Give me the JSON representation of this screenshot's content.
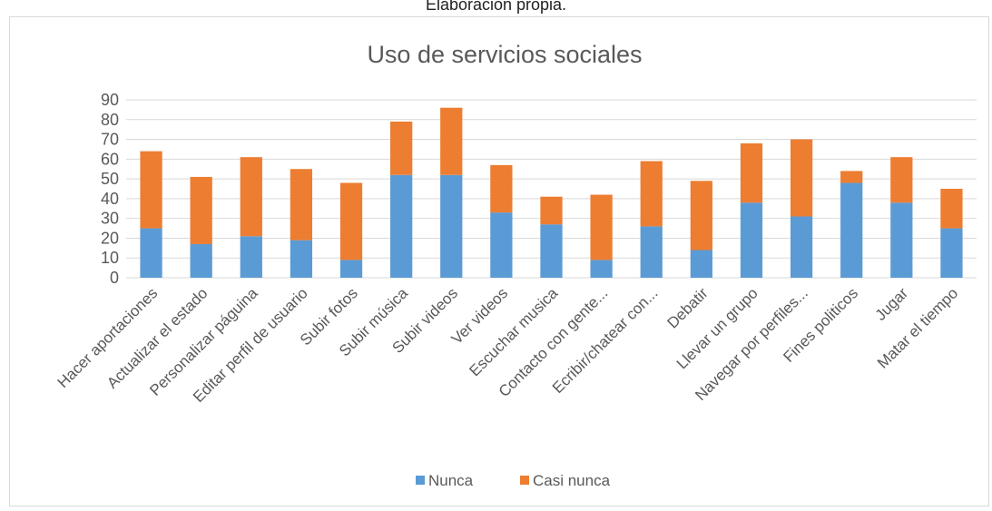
{
  "caption": "Elaboración propia.",
  "chart_data": {
    "type": "bar",
    "stacked": true,
    "title": "Uso de servicios sociales",
    "xlabel": "",
    "ylabel": "",
    "ylim": [
      0,
      90
    ],
    "yticks": [
      0,
      10,
      20,
      30,
      40,
      50,
      60,
      70,
      80,
      90
    ],
    "grid": true,
    "legend": "bottom",
    "categories": [
      "Hacer aportaciones",
      "Actualizar el estado",
      "Personalizar páguina",
      "Editar perfil de usuario",
      "Subir fotos",
      "Subir música",
      "Subir videos",
      "Ver videos",
      "Escuchar musica",
      "Contacto con gente...",
      "Ecribir/chatear con...",
      "Debatir",
      "Llevar un grupo",
      "Navegar por perfiles...",
      "Fines politicos",
      "Jugar",
      "Matar el tiempo"
    ],
    "series": [
      {
        "name": "Nunca",
        "color": "#5B9BD5",
        "values": [
          25,
          17,
          21,
          19,
          9,
          52,
          52,
          33,
          27,
          9,
          26,
          14,
          38,
          31,
          48,
          38,
          25
        ]
      },
      {
        "name": "Casi nunca",
        "color": "#ED7D31",
        "values": [
          39,
          34,
          40,
          36,
          39,
          27,
          34,
          24,
          14,
          33,
          33,
          35,
          30,
          39,
          6,
          23,
          20
        ]
      }
    ]
  }
}
